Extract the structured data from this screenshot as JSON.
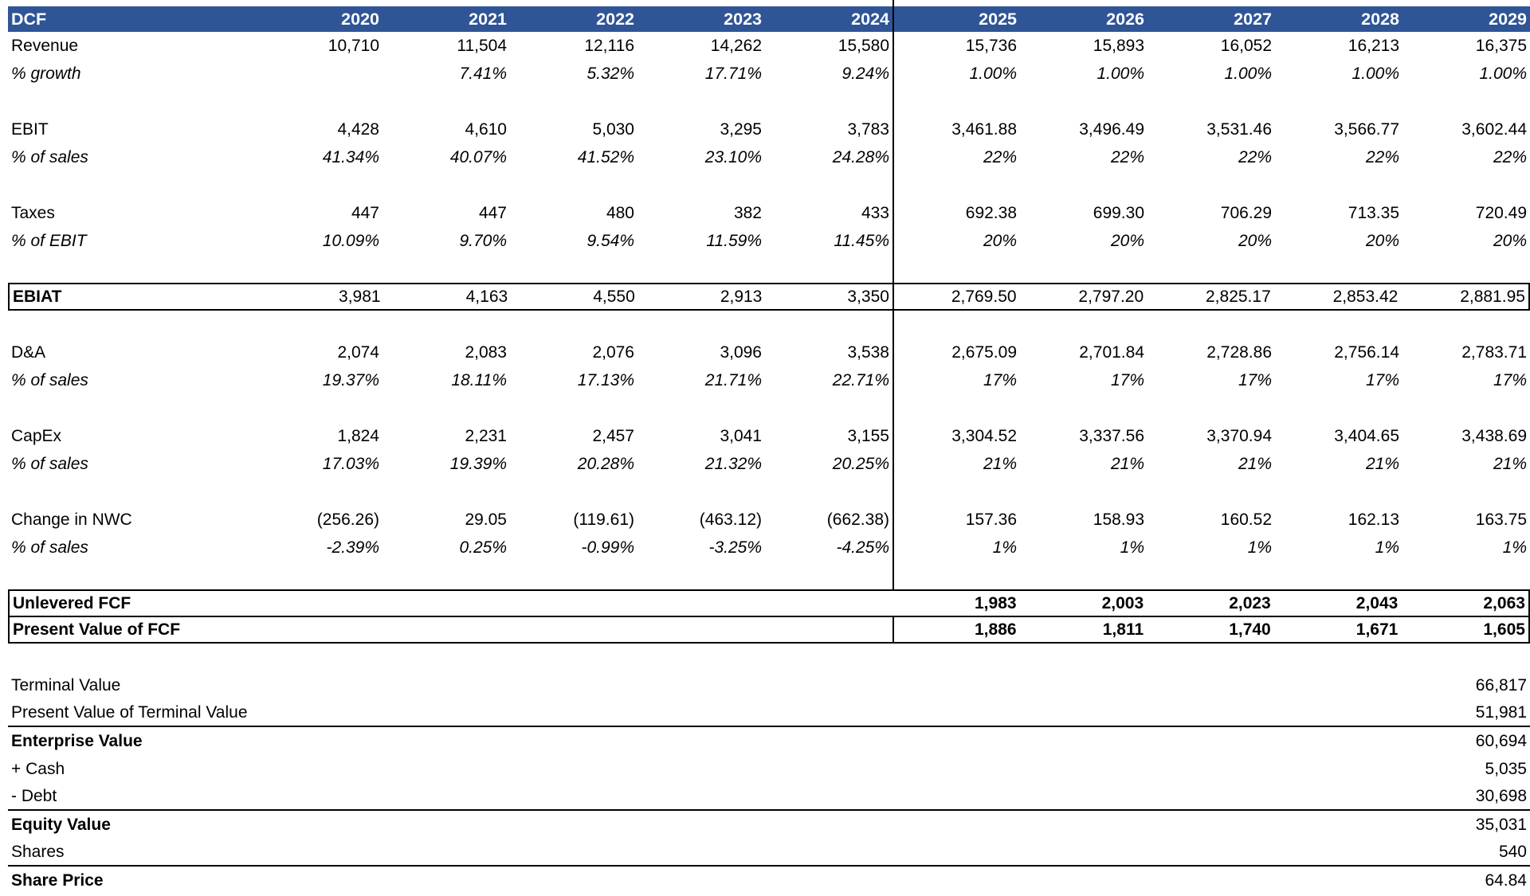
{
  "colors": {
    "header_bg": "#2F5597",
    "header_text": "#FFFFFF",
    "divider": "#000000"
  },
  "header": {
    "label": "DCF",
    "years": [
      "2020",
      "2021",
      "2022",
      "2023",
      "2024",
      "2025",
      "2026",
      "2027",
      "2028",
      "2029"
    ]
  },
  "table": {
    "rows": [
      {
        "kind": "data",
        "label": "Revenue",
        "values": [
          "10,710",
          "11,504",
          "12,116",
          "14,262",
          "15,580",
          "15,736",
          "15,893",
          "16,052",
          "16,213",
          "16,375"
        ]
      },
      {
        "kind": "pct",
        "label": "% growth",
        "values": [
          "",
          "7.41%",
          "5.32%",
          "17.71%",
          "9.24%",
          "1.00%",
          "1.00%",
          "1.00%",
          "1.00%",
          "1.00%"
        ]
      },
      {
        "kind": "spacer"
      },
      {
        "kind": "data",
        "label": "EBIT",
        "values": [
          "4,428",
          "4,610",
          "5,030",
          "3,295",
          "3,783",
          "3,461.88",
          "3,496.49",
          "3,531.46",
          "3,566.77",
          "3,602.44"
        ]
      },
      {
        "kind": "pct",
        "label": "% of sales",
        "values": [
          "41.34%",
          "40.07%",
          "41.52%",
          "23.10%",
          "24.28%",
          "22%",
          "22%",
          "22%",
          "22%",
          "22%"
        ]
      },
      {
        "kind": "spacer"
      },
      {
        "kind": "data",
        "label": "Taxes",
        "values": [
          "447",
          "447",
          "480",
          "382",
          "433",
          "692.38",
          "699.30",
          "706.29",
          "713.35",
          "720.49"
        ]
      },
      {
        "kind": "pct",
        "label": "% of EBIT",
        "values": [
          "10.09%",
          "9.70%",
          "9.54%",
          "11.59%",
          "11.45%",
          "20%",
          "20%",
          "20%",
          "20%",
          "20%"
        ]
      },
      {
        "kind": "spacer"
      },
      {
        "kind": "total",
        "label": "EBIAT",
        "values": [
          "3,981",
          "4,163",
          "4,550",
          "2,913",
          "3,350",
          "2,769.50",
          "2,797.20",
          "2,825.17",
          "2,853.42",
          "2,881.95"
        ]
      },
      {
        "kind": "spacer"
      },
      {
        "kind": "data",
        "label": "D&A",
        "values": [
          "2,074",
          "2,083",
          "2,076",
          "3,096",
          "3,538",
          "2,675.09",
          "2,701.84",
          "2,728.86",
          "2,756.14",
          "2,783.71"
        ]
      },
      {
        "kind": "pct",
        "label": "% of sales",
        "values": [
          "19.37%",
          "18.11%",
          "17.13%",
          "21.71%",
          "22.71%",
          "17%",
          "17%",
          "17%",
          "17%",
          "17%"
        ]
      },
      {
        "kind": "spacer"
      },
      {
        "kind": "data",
        "label": "CapEx",
        "values": [
          "1,824",
          "2,231",
          "2,457",
          "3,041",
          "3,155",
          "3,304.52",
          "3,337.56",
          "3,370.94",
          "3,404.65",
          "3,438.69"
        ]
      },
      {
        "kind": "pct",
        "label": "% of sales",
        "values": [
          "17.03%",
          "19.39%",
          "20.28%",
          "21.32%",
          "20.25%",
          "21%",
          "21%",
          "21%",
          "21%",
          "21%"
        ]
      },
      {
        "kind": "spacer"
      },
      {
        "kind": "data",
        "label": "Change in NWC",
        "values": [
          "(256.26)",
          "29.05",
          "(119.61)",
          "(463.12)",
          "(662.38)",
          "157.36",
          "158.93",
          "160.52",
          "162.13",
          "163.75"
        ]
      },
      {
        "kind": "pct",
        "label": "% of sales",
        "values": [
          "-2.39%",
          "0.25%",
          "-0.99%",
          "-3.25%",
          "-4.25%",
          "1%",
          "1%",
          "1%",
          "1%",
          "1%"
        ]
      },
      {
        "kind": "spacer"
      },
      {
        "kind": "fcf-top",
        "label": "Unlevered FCF",
        "values": [
          "",
          "",
          "",
          "",
          "",
          "1,983",
          "2,003",
          "2,023",
          "2,043",
          "2,063"
        ]
      },
      {
        "kind": "fcf-bottom",
        "label": "Present Value of FCF",
        "values": [
          "",
          "",
          "",
          "",
          "",
          "1,886",
          "1,811",
          "1,740",
          "1,671",
          "1,605"
        ]
      },
      {
        "kind": "spacer"
      }
    ]
  },
  "summary": {
    "rows": [
      {
        "label": "Terminal Value",
        "value": "66,817",
        "bold": false,
        "rule_below": false
      },
      {
        "label": "Present Value of Terminal Value",
        "value": "51,981",
        "bold": false,
        "rule_below": true
      },
      {
        "label": "Enterprise Value",
        "value": "60,694",
        "bold": true,
        "rule_below": false
      },
      {
        "label": "+ Cash",
        "value": "5,035",
        "bold": false,
        "rule_below": false
      },
      {
        "label": "- Debt",
        "value": "30,698",
        "bold": false,
        "rule_below": true
      },
      {
        "label": "Equity Value",
        "value": "35,031",
        "bold": true,
        "rule_below": false
      },
      {
        "label": "Shares",
        "value": "540",
        "bold": false,
        "rule_below": true
      },
      {
        "label": "Share Price",
        "value": "64.84",
        "bold": true,
        "rule_below": false
      }
    ]
  }
}
